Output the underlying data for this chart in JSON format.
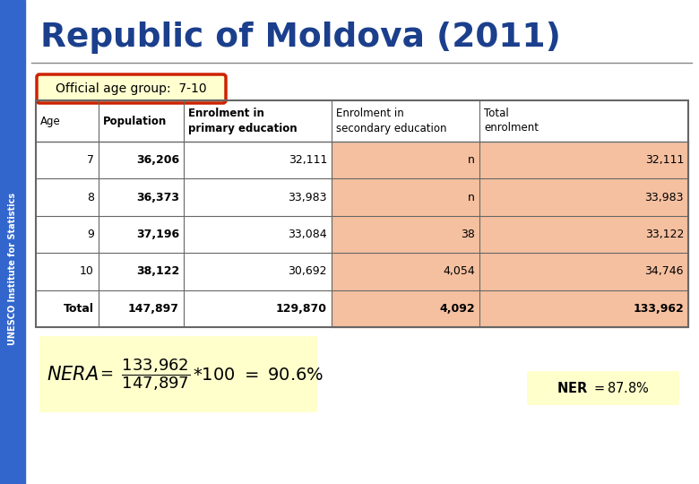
{
  "title": "Republic of Moldova (2011)",
  "title_color": "#1B3F8C",
  "subtitle": "Official age group:  7-10",
  "sidebar_text": "UNESCO Institute for Statistics",
  "sidebar_color": "#3366CC",
  "col_headers": [
    "Age",
    "Population",
    "Enrolment in\nprimary education",
    "Enrolment in\nsecondary education",
    "Total\nenrolment"
  ],
  "header_bold": [
    false,
    true,
    true,
    false,
    false
  ],
  "rows": [
    [
      "7",
      "36,206",
      "32,111",
      "n",
      "32,111"
    ],
    [
      "8",
      "36,373",
      "33,983",
      "n",
      "33,983"
    ],
    [
      "9",
      "37,196",
      "33,084",
      "38",
      "33,122"
    ],
    [
      "10",
      "38,122",
      "30,692",
      "4,054",
      "34,746"
    ],
    [
      "Total",
      "147,897",
      "129,870",
      "4,092",
      "133,962"
    ]
  ],
  "row_bold": [
    false,
    false,
    false,
    false,
    true
  ],
  "row_bg_white": "#FFFFFF",
  "row_bg_pink": "#F5C0A0",
  "formula_bg": "#FFFFCC",
  "ner_bg": "#FFFFCC",
  "divider_color": "#888888",
  "border_color": "#666666",
  "age_group_box_color": "#CC2200",
  "age_group_fill": "#FFFFD0"
}
